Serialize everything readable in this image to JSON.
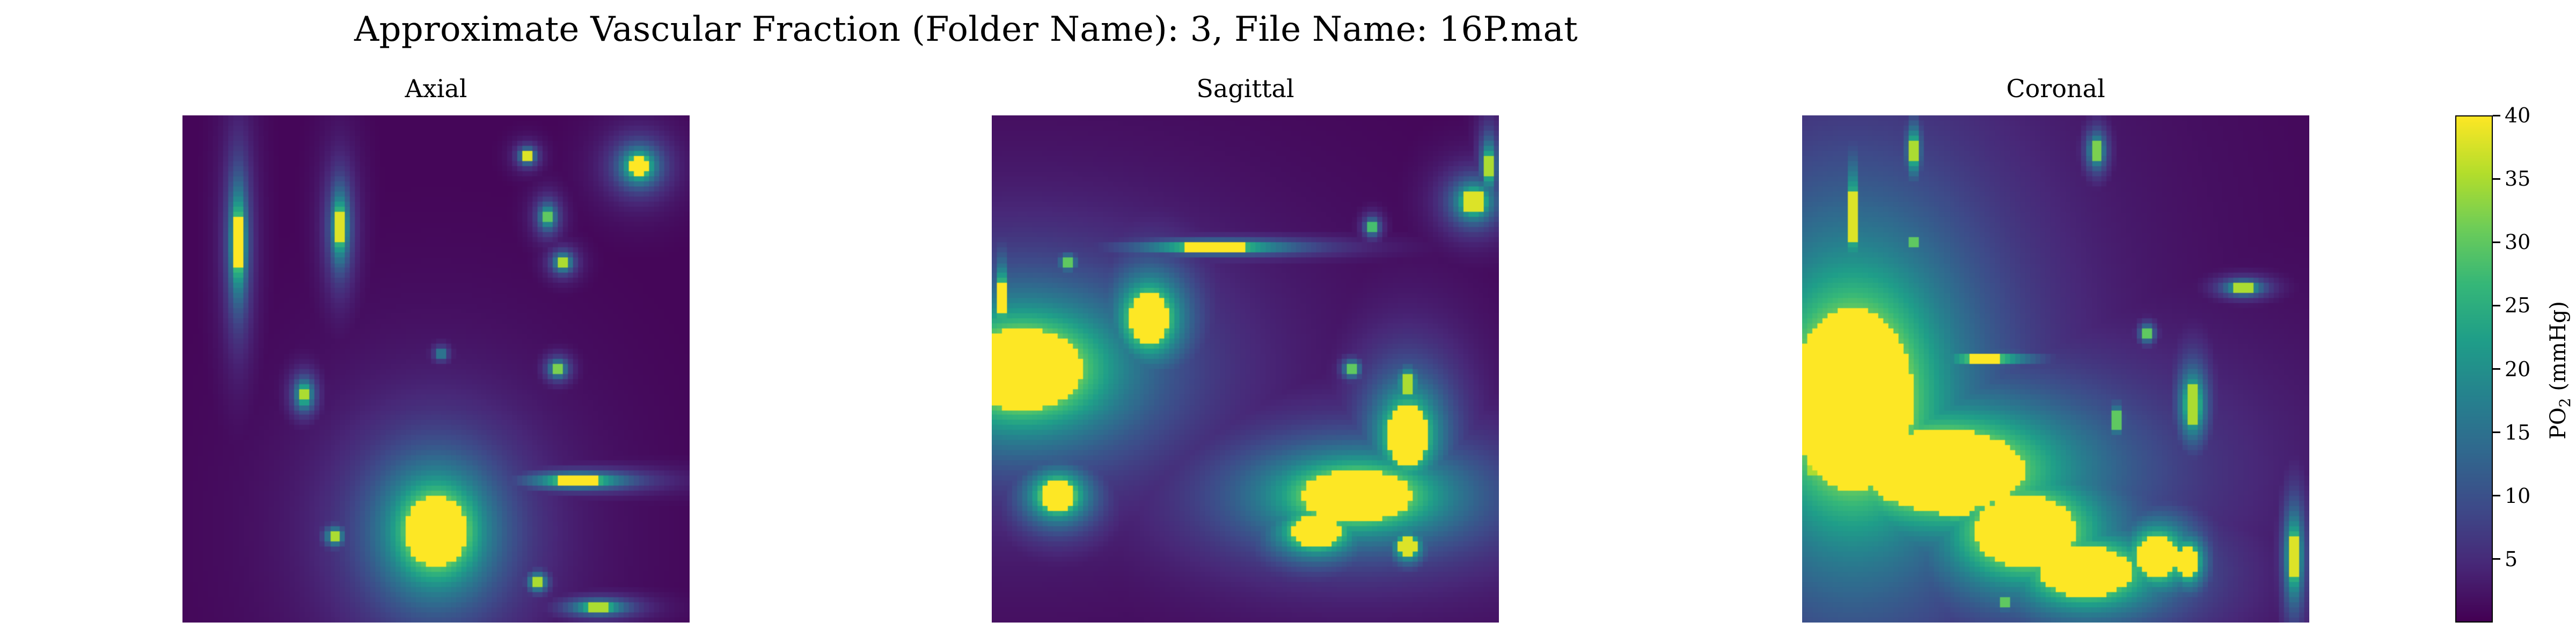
{
  "chart_data": {
    "type": "heatmap",
    "title": "Approximate Vascular Fraction (Folder Name): 3, File Name: 16P.mat",
    "colormap": "viridis",
    "vmin": 0,
    "vmax": 40,
    "colorbar": {
      "label": "PO2 (mmHg)",
      "label_main": "PO",
      "label_sub": "2",
      "label_rest": " (mmHg)",
      "ticks": [
        5,
        10,
        15,
        20,
        25,
        30,
        35,
        40
      ],
      "tick_labels": [
        "5",
        "10",
        "15",
        "20",
        "25",
        "30",
        "35",
        "40"
      ]
    },
    "panels": [
      {
        "title": "Axial",
        "grid": 100,
        "blobs": [
          {
            "x": 50,
            "y": 82,
            "rx": 6,
            "ry": 7,
            "v": 45
          },
          {
            "x": 11,
            "y": 25,
            "rx": 0.9,
            "ry": 6,
            "v": 42
          },
          {
            "x": 31,
            "y": 22,
            "rx": 1,
            "ry": 4,
            "v": 38
          },
          {
            "x": 90,
            "y": 10,
            "rx": 2,
            "ry": 2,
            "v": 40
          },
          {
            "x": 68,
            "y": 8,
            "rx": 0.8,
            "ry": 0.8,
            "v": 38
          },
          {
            "x": 72,
            "y": 20,
            "rx": 1,
            "ry": 1.5,
            "v": 30
          },
          {
            "x": 75,
            "y": 29,
            "rx": 1,
            "ry": 1,
            "v": 35
          },
          {
            "x": 24,
            "y": 55,
            "rx": 1,
            "ry": 1.6,
            "v": 35
          },
          {
            "x": 51,
            "y": 47,
            "rx": 1,
            "ry": 1,
            "v": 15
          },
          {
            "x": 74,
            "y": 50,
            "rx": 1,
            "ry": 1,
            "v": 32
          },
          {
            "x": 30,
            "y": 83,
            "rx": 1,
            "ry": 1,
            "v": 35
          },
          {
            "x": 78,
            "y": 72,
            "rx": 5,
            "ry": 0.8,
            "v": 40
          },
          {
            "x": 70,
            "y": 92,
            "rx": 1,
            "ry": 1,
            "v": 35
          },
          {
            "x": 82,
            "y": 97,
            "rx": 3,
            "ry": 0.8,
            "v": 35
          }
        ]
      },
      {
        "title": "Sagittal",
        "grid": 100,
        "blobs": [
          {
            "x": 6,
            "y": 50,
            "rx": 12,
            "ry": 8,
            "v": 45
          },
          {
            "x": 31,
            "y": 40,
            "rx": 4,
            "ry": 5,
            "v": 42
          },
          {
            "x": 44,
            "y": 26,
            "rx": 8,
            "ry": 0.7,
            "v": 40
          },
          {
            "x": 72,
            "y": 75,
            "rx": 11,
            "ry": 5,
            "v": 44
          },
          {
            "x": 82,
            "y": 63,
            "rx": 4,
            "ry": 6,
            "v": 40
          },
          {
            "x": 64,
            "y": 82,
            "rx": 5,
            "ry": 3,
            "v": 42
          },
          {
            "x": 95,
            "y": 17,
            "rx": 2.2,
            "ry": 2.2,
            "v": 38
          },
          {
            "x": 98,
            "y": 10,
            "rx": 0.8,
            "ry": 3,
            "v": 35
          },
          {
            "x": 13,
            "y": 75,
            "rx": 3.5,
            "ry": 3,
            "v": 42
          },
          {
            "x": 82,
            "y": 53,
            "rx": 1.2,
            "ry": 2,
            "v": 35
          },
          {
            "x": 71,
            "y": 50,
            "rx": 1,
            "ry": 1,
            "v": 30
          },
          {
            "x": 82,
            "y": 85,
            "rx": 1.8,
            "ry": 1.8,
            "v": 38
          },
          {
            "x": 2,
            "y": 36,
            "rx": 0.8,
            "ry": 4,
            "v": 40
          },
          {
            "x": 15,
            "y": 29,
            "rx": 1,
            "ry": 1,
            "v": 30
          },
          {
            "x": 75,
            "y": 22,
            "rx": 0.8,
            "ry": 1,
            "v": 28
          }
        ]
      },
      {
        "title": "Coronal",
        "grid": 100,
        "blobs": [
          {
            "x": 10,
            "y": 56,
            "rx": 12,
            "ry": 18,
            "v": 45
          },
          {
            "x": 28,
            "y": 70,
            "rx": 16,
            "ry": 8,
            "v": 44
          },
          {
            "x": 44,
            "y": 82,
            "rx": 10,
            "ry": 7,
            "v": 44
          },
          {
            "x": 56,
            "y": 90,
            "rx": 9,
            "ry": 5,
            "v": 42
          },
          {
            "x": 70,
            "y": 87,
            "rx": 4,
            "ry": 4,
            "v": 42
          },
          {
            "x": 77,
            "y": 57,
            "rx": 1.5,
            "ry": 4,
            "v": 35
          },
          {
            "x": 10,
            "y": 20,
            "rx": 0.8,
            "ry": 6,
            "v": 38
          },
          {
            "x": 22,
            "y": 7,
            "rx": 0.8,
            "ry": 3,
            "v": 35
          },
          {
            "x": 87,
            "y": 34,
            "rx": 2,
            "ry": 0.8,
            "v": 35
          },
          {
            "x": 68,
            "y": 43,
            "rx": 0.8,
            "ry": 1,
            "v": 30
          },
          {
            "x": 36,
            "y": 48,
            "rx": 5,
            "ry": 0.7,
            "v": 40
          },
          {
            "x": 62,
            "y": 60,
            "rx": 0.8,
            "ry": 2,
            "v": 30
          },
          {
            "x": 97,
            "y": 87,
            "rx": 1,
            "ry": 5,
            "v": 38
          },
          {
            "x": 58,
            "y": 7,
            "rx": 1,
            "ry": 2,
            "v": 32
          },
          {
            "x": 76,
            "y": 88,
            "rx": 2,
            "ry": 3,
            "v": 40
          },
          {
            "x": 40,
            "y": 96,
            "rx": 1,
            "ry": 1,
            "v": 30
          },
          {
            "x": 30,
            "y": 78,
            "rx": 3,
            "ry": 1.5,
            "v": 40
          },
          {
            "x": 22,
            "y": 25,
            "rx": 0.8,
            "ry": 1,
            "v": 30
          },
          {
            "x": 2,
            "y": 70,
            "rx": 1,
            "ry": 1,
            "v": 35
          }
        ]
      }
    ]
  }
}
